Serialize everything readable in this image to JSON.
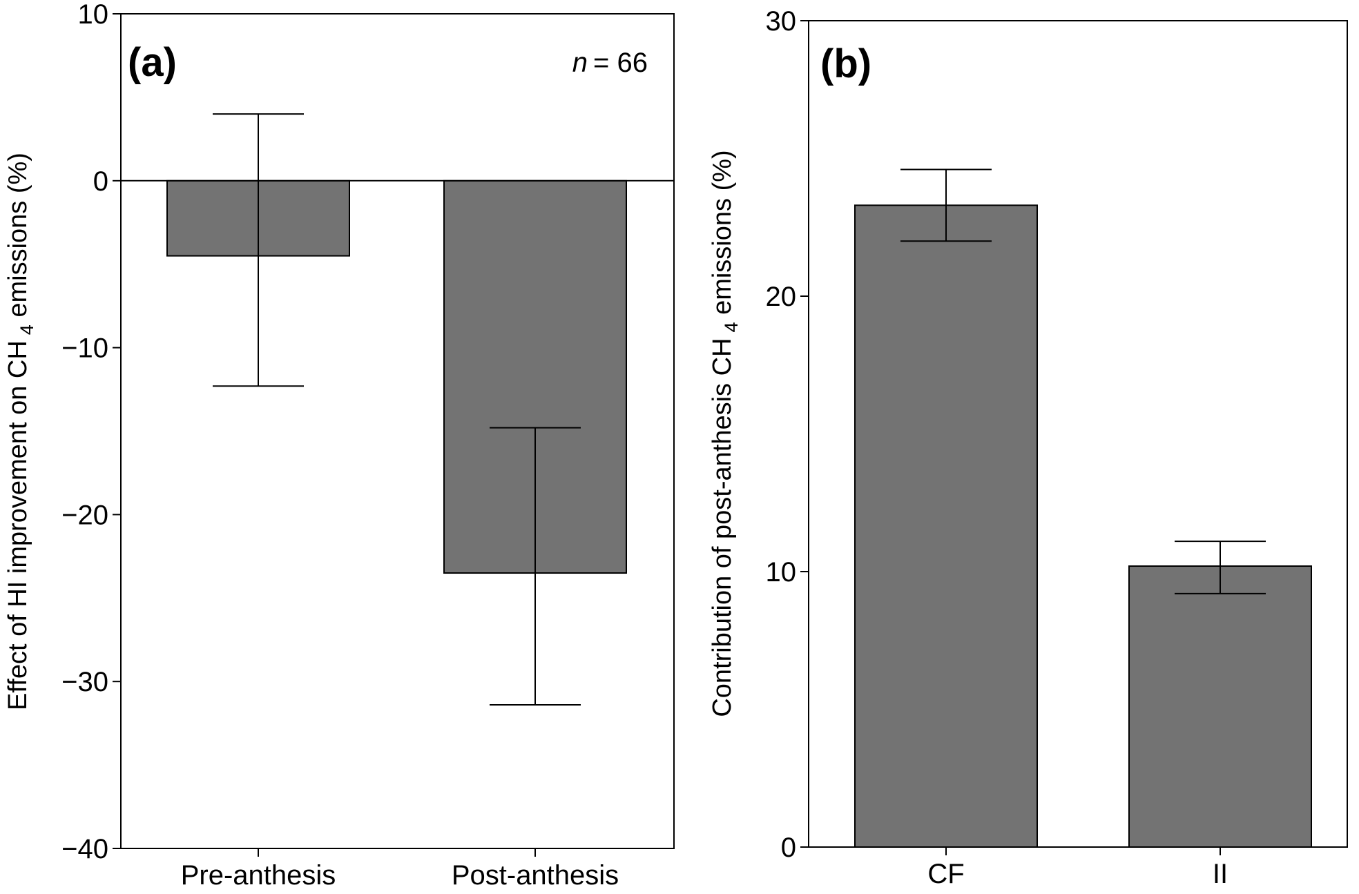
{
  "figure": {
    "background": "#ffffff",
    "bar_color": "#737373"
  },
  "chart_data": [
    {
      "type": "bar",
      "panel_label": "(a)",
      "n_label": "n",
      "n_value": "= 66",
      "ylabel_pre": "Effect of HI improvement on CH",
      "ylabel_sub": "4",
      "ylabel_post": " emissions (%)",
      "categories": [
        "Pre-anthesis",
        "Post-anthesis"
      ],
      "values": [
        -4.5,
        -23.5
      ],
      "error_low": [
        -12.3,
        -31.4
      ],
      "error_high": [
        4.0,
        -14.8
      ],
      "ylim": [
        -40,
        10
      ],
      "yticks": [
        10,
        0,
        -10,
        -20,
        -30,
        -40
      ],
      "ytick_labels": [
        "10",
        "0",
        "−10",
        "−20",
        "−30",
        "−40"
      ],
      "zero_line": true,
      "grid": false
    },
    {
      "type": "bar",
      "panel_label": "(b)",
      "ylabel_pre": "Contribution of post-anthesis CH",
      "ylabel_sub": "4",
      "ylabel_post": " emissions (%)",
      "categories": [
        "CF",
        "II"
      ],
      "values": [
        23.3,
        10.2
      ],
      "error_low": [
        22.0,
        9.2
      ],
      "error_high": [
        24.6,
        11.1
      ],
      "ylim": [
        0,
        30
      ],
      "yticks": [
        30,
        20,
        10,
        0
      ],
      "ytick_labels": [
        "30",
        "20",
        "10",
        "0"
      ],
      "zero_line": false,
      "grid": false
    }
  ]
}
